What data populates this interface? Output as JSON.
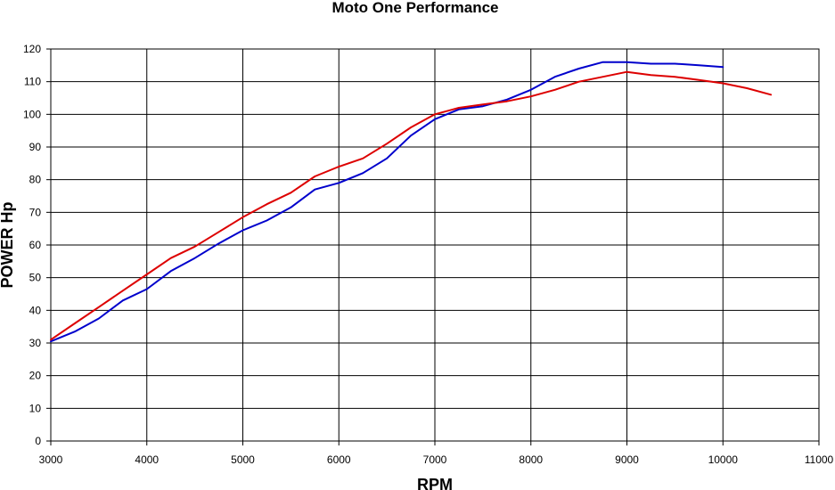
{
  "chart_data": {
    "type": "line",
    "title": "Moto One Performance",
    "xlabel": "RPM",
    "ylabel": "POWER  Hp",
    "xlim": [
      3000,
      11000
    ],
    "ylim": [
      0,
      120
    ],
    "x_ticks": [
      3000,
      4000,
      5000,
      6000,
      7000,
      8000,
      9000,
      10000,
      11000
    ],
    "y_ticks": [
      0,
      10,
      20,
      30,
      40,
      50,
      60,
      70,
      80,
      90,
      100,
      110,
      120
    ],
    "grid": true,
    "legend": "none",
    "series": [
      {
        "color": "#0000cc",
        "points": [
          [
            3000,
            30.5
          ],
          [
            3250,
            33.5
          ],
          [
            3500,
            37.5
          ],
          [
            3750,
            43
          ],
          [
            4000,
            46.5
          ],
          [
            4250,
            52
          ],
          [
            4500,
            56
          ],
          [
            4750,
            60.5
          ],
          [
            5000,
            64.5
          ],
          [
            5250,
            67.5
          ],
          [
            5500,
            71.5
          ],
          [
            5750,
            77
          ],
          [
            6000,
            79
          ],
          [
            6250,
            82
          ],
          [
            6500,
            86.5
          ],
          [
            6750,
            93.5
          ],
          [
            7000,
            98.5
          ],
          [
            7250,
            101.5
          ],
          [
            7500,
            102.5
          ],
          [
            7750,
            104.5
          ],
          [
            8000,
            107.5
          ],
          [
            8250,
            111.5
          ],
          [
            8500,
            114
          ],
          [
            8750,
            116
          ],
          [
            9000,
            116
          ],
          [
            9250,
            115.5
          ],
          [
            9500,
            115.5
          ],
          [
            9750,
            115
          ],
          [
            10000,
            114.5
          ]
        ]
      },
      {
        "color": "#dd0000",
        "points": [
          [
            3000,
            31
          ],
          [
            3250,
            36
          ],
          [
            3500,
            41
          ],
          [
            3750,
            46
          ],
          [
            4000,
            51
          ],
          [
            4250,
            56
          ],
          [
            4500,
            59.5
          ],
          [
            4750,
            64
          ],
          [
            5000,
            68.5
          ],
          [
            5250,
            72.5
          ],
          [
            5500,
            76
          ],
          [
            5750,
            81
          ],
          [
            6000,
            84
          ],
          [
            6250,
            86.5
          ],
          [
            6500,
            91
          ],
          [
            6750,
            96
          ],
          [
            7000,
            100
          ],
          [
            7250,
            102
          ],
          [
            7500,
            103
          ],
          [
            7750,
            104
          ],
          [
            8000,
            105.5
          ],
          [
            8250,
            107.5
          ],
          [
            8500,
            110
          ],
          [
            8750,
            111.5
          ],
          [
            9000,
            113
          ],
          [
            9250,
            112
          ],
          [
            9500,
            111.5
          ],
          [
            9750,
            110.5
          ],
          [
            10000,
            109.5
          ],
          [
            10250,
            108
          ],
          [
            10500,
            106
          ]
        ]
      }
    ]
  }
}
